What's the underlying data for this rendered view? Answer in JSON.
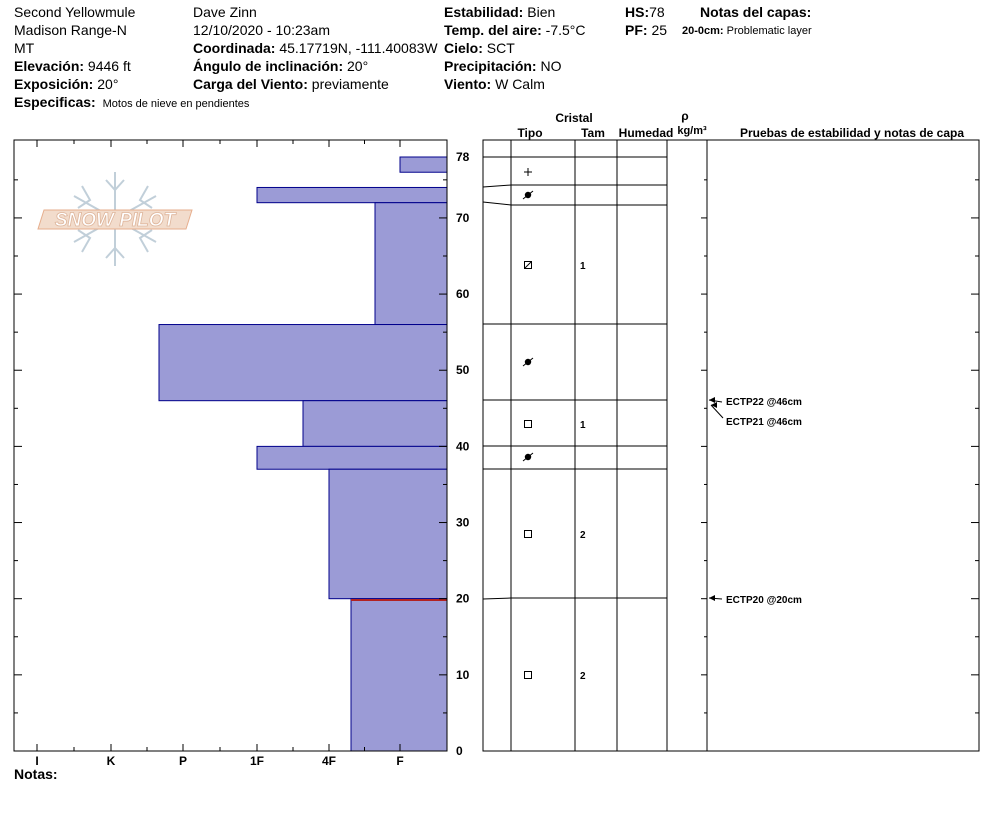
{
  "header": {
    "location": "Second Yellowmule",
    "range": "Madison Range-N",
    "state": "MT",
    "elevation": {
      "label": "Elevación:",
      "value": "9446 ft"
    },
    "aspect": {
      "label": "Exposición:",
      "value": "20°"
    },
    "specifics": {
      "label": "Especificas:",
      "value": "Motos de nieve en pendientes"
    },
    "observer": "Dave Zinn",
    "datetime": "12/10/2020 - 10:23am",
    "coordinates": {
      "label": "Coordinada:",
      "value": "45.17719N, -111.40083W"
    },
    "incline": {
      "label": "Ángulo de inclinación:",
      "value": "20°"
    },
    "wind_loading": {
      "label": "Carga del Viento:",
      "value": "previamente"
    },
    "stability": {
      "label": "Estabilidad:",
      "value": "Bien"
    },
    "air_temp": {
      "label": "Temp. del aire:",
      "value": "-7.5°C"
    },
    "sky": {
      "label": "Cielo:",
      "value": "SCT"
    },
    "precip": {
      "label": "Precipitación:",
      "value": "NO"
    },
    "wind": {
      "label": "Viento:",
      "value": "W Calm"
    },
    "hs": {
      "label": "HS:",
      "value": "78"
    },
    "pf": {
      "label": "PF:",
      "value": "25"
    },
    "layer_notes_title": "Notas del capas:",
    "layer_note": {
      "label": "20-0cm:",
      "value": "Problematic layer"
    }
  },
  "table_headers": {
    "crystal": "Cristal",
    "type": "Tipo",
    "size": "Tam",
    "moisture": "Humedad",
    "density_symbol": "ρ",
    "density_unit": "kg/m³",
    "tests": "Pruebas de estabilidad y notas de capa"
  },
  "footer": {
    "notes_label": "Notas:"
  },
  "logo_text": "SNOW PILOT",
  "colors": {
    "hardness_fill": "#9b9bd6",
    "hardness_stroke": "#00008b",
    "weak_layer_line": "#b22222"
  },
  "chart_data": {
    "type": "bar",
    "orientation": "horizontal",
    "y_axis": {
      "label": "",
      "range": [
        0,
        78
      ],
      "ticks": [
        0,
        10,
        20,
        30,
        40,
        50,
        60,
        70,
        78
      ]
    },
    "x_axis": {
      "categories": [
        "I",
        "K",
        "P",
        "1F",
        "4F",
        "F"
      ]
    },
    "hardness_layers": [
      {
        "bottom": 76,
        "top": 78,
        "hardness": "F"
      },
      {
        "bottom": 72,
        "top": 74,
        "hardness": "1F"
      },
      {
        "bottom": 56,
        "top": 72,
        "hardness": "4F+"
      },
      {
        "bottom": 46,
        "top": 56,
        "hardness": "P+"
      },
      {
        "bottom": 40,
        "top": 46,
        "hardness": "1F-"
      },
      {
        "bottom": 37,
        "top": 40,
        "hardness": "1F"
      },
      {
        "bottom": 20,
        "top": 37,
        "hardness": "4F"
      },
      {
        "bottom": 0,
        "top": 20,
        "hardness": "4F-"
      }
    ],
    "layer_boundaries": [
      78,
      74,
      72,
      56,
      46,
      40,
      37,
      20
    ],
    "crystals": [
      {
        "height": 75,
        "type": "precipitation-particles",
        "symbol": "+",
        "size": ""
      },
      {
        "height": 73,
        "type": "melt-forms",
        "symbol": "●",
        "size": ""
      },
      {
        "height": 64,
        "type": "rounding-faceted",
        "symbol": "⊠",
        "size": "1"
      },
      {
        "height": 51,
        "type": "melt-forms",
        "symbol": "●",
        "size": ""
      },
      {
        "height": 43,
        "type": "faceted",
        "symbol": "□",
        "size": "1"
      },
      {
        "height": 38.5,
        "type": "melt-forms",
        "symbol": "●",
        "size": ""
      },
      {
        "height": 28.5,
        "type": "faceted",
        "symbol": "□",
        "size": "2"
      },
      {
        "height": 10,
        "type": "faceted",
        "symbol": "□",
        "size": "2"
      }
    ],
    "stability_tests": [
      {
        "label": "ECTP22 @46cm",
        "depth": 46
      },
      {
        "label": "ECTP21 @46cm",
        "depth": 46
      },
      {
        "label": "ECTP20 @20cm",
        "depth": 20
      }
    ]
  }
}
